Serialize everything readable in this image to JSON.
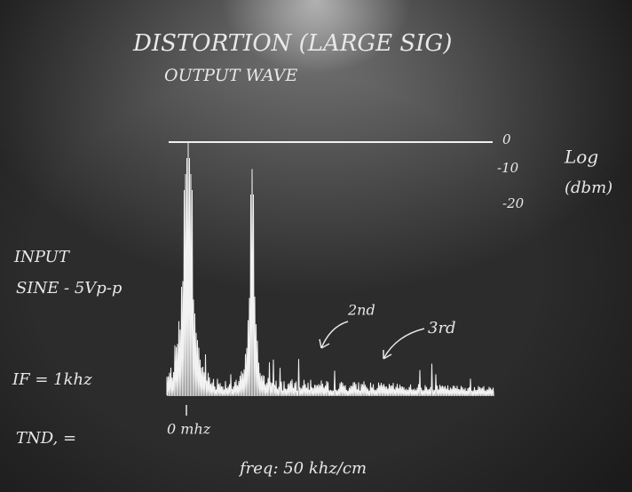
{
  "header": {
    "title": "DISTORTION (LARGE SIG)",
    "subtitle": "OUTPUT WAVE"
  },
  "scale": {
    "ticks": [
      "0",
      "-10",
      "-20"
    ],
    "unit": [
      "Log",
      "(dbm)"
    ]
  },
  "input_notes": {
    "line1": "INPUT",
    "line2": "SINE - 5Vp-p",
    "line3": "IF = 1khz",
    "line4": "TND, ="
  },
  "peaks": {
    "second": "2nd",
    "third": "3rd"
  },
  "x_axis": {
    "origin": "0 mhz",
    "scale": "freq: 50 khz/cm"
  }
}
